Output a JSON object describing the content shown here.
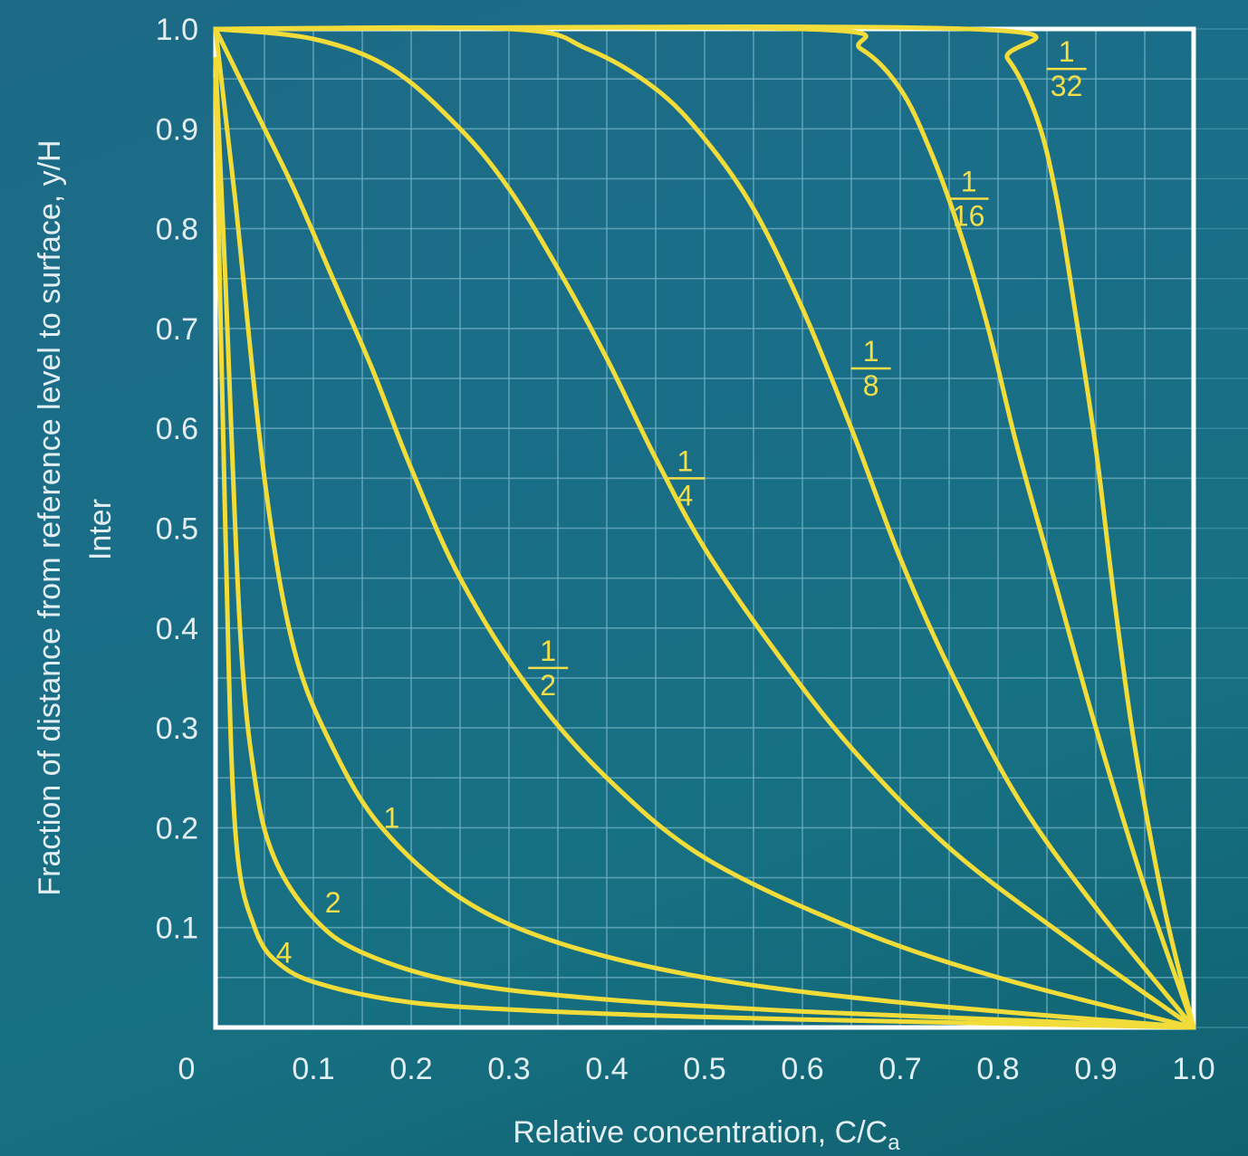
{
  "chart_data": {
    "type": "line",
    "title": "",
    "xlabel": "Relative concentration, C/C",
    "xlabel_subscript": "a",
    "ylabel": "Fraction of distance from reference level to surface, y/H",
    "ylabel_secondary": "Inter",
    "xlim": [
      0,
      1.0
    ],
    "ylim": [
      0,
      1.0
    ],
    "grid": true,
    "x_ticks": [
      "0",
      "0.1",
      "0.2",
      "0.3",
      "0.4",
      "0.5",
      "0.6",
      "0.7",
      "0.8",
      "0.9",
      "1.0"
    ],
    "y_ticks": [
      "0.1",
      "0.2",
      "0.3",
      "0.4",
      "0.5",
      "0.6",
      "0.7",
      "0.8",
      "0.9",
      "1.0"
    ],
    "series": [
      {
        "name": "4",
        "z": 4,
        "x": [
          0.0,
          0.01,
          0.02,
          0.04,
          0.07,
          0.12,
          0.2,
          0.3,
          0.45,
          0.6,
          0.8,
          1.0
        ],
        "y": [
          0.95,
          0.5,
          0.2,
          0.1,
          0.06,
          0.04,
          0.025,
          0.018,
          0.012,
          0.008,
          0.004,
          0.0
        ]
      },
      {
        "name": "2",
        "z": 2,
        "x": [
          0.0,
          0.01,
          0.025,
          0.04,
          0.06,
          0.1,
          0.15,
          0.25,
          0.4,
          0.6,
          0.8,
          1.0
        ],
        "y": [
          0.97,
          0.75,
          0.4,
          0.25,
          0.17,
          0.11,
          0.075,
          0.045,
          0.028,
          0.016,
          0.008,
          0.0
        ]
      },
      {
        "name": "1",
        "z": 1,
        "x": [
          0.0,
          0.02,
          0.05,
          0.08,
          0.12,
          0.17,
          0.25,
          0.35,
          0.5,
          0.7,
          1.0
        ],
        "y": [
          1.0,
          0.83,
          0.55,
          0.38,
          0.28,
          0.2,
          0.13,
          0.085,
          0.05,
          0.025,
          0.0
        ]
      },
      {
        "name": "1/2",
        "z": 0.5,
        "x": [
          0.0,
          0.04,
          0.08,
          0.12,
          0.16,
          0.2,
          0.25,
          0.32,
          0.4,
          0.5,
          0.65,
          0.8,
          1.0
        ],
        "y": [
          1.0,
          0.92,
          0.84,
          0.75,
          0.66,
          0.56,
          0.45,
          0.34,
          0.25,
          0.17,
          0.1,
          0.05,
          0.0
        ]
      },
      {
        "name": "1/4",
        "z": 0.25,
        "x": [
          0.0,
          0.1,
          0.18,
          0.25,
          0.3,
          0.35,
          0.4,
          0.45,
          0.5,
          0.57,
          0.65,
          0.75,
          0.87,
          1.0
        ],
        "y": [
          1.0,
          0.99,
          0.96,
          0.9,
          0.84,
          0.76,
          0.67,
          0.57,
          0.48,
          0.38,
          0.28,
          0.18,
          0.09,
          0.0
        ]
      },
      {
        "name": "1/8",
        "z": 0.125,
        "x": [
          0.0,
          0.3,
          0.38,
          0.45,
          0.5,
          0.55,
          0.6,
          0.65,
          0.7,
          0.75,
          0.82,
          0.9,
          1.0
        ],
        "y": [
          1.0,
          1.0,
          0.98,
          0.94,
          0.89,
          0.82,
          0.72,
          0.6,
          0.47,
          0.36,
          0.23,
          0.12,
          0.0
        ]
      },
      {
        "name": "1/16",
        "z": 0.0625,
        "x": [
          0.0,
          0.6,
          0.66,
          0.7,
          0.73,
          0.76,
          0.79,
          0.82,
          0.86,
          0.9,
          0.95,
          1.0
        ],
        "y": [
          1.0,
          1.0,
          0.98,
          0.94,
          0.88,
          0.8,
          0.7,
          0.58,
          0.44,
          0.3,
          0.14,
          0.0
        ]
      },
      {
        "name": "1/32",
        "z": 0.03125,
        "x": [
          0.0,
          0.77,
          0.81,
          0.84,
          0.86,
          0.88,
          0.9,
          0.92,
          0.94,
          0.97,
          1.0
        ],
        "y": [
          1.0,
          1.0,
          0.97,
          0.91,
          0.83,
          0.71,
          0.58,
          0.42,
          0.28,
          0.12,
          0.0
        ]
      }
    ],
    "curve_labels": [
      {
        "series": "4",
        "numerator": "4",
        "denominator": "",
        "at": [
          0.07,
          0.075
        ]
      },
      {
        "series": "2",
        "numerator": "2",
        "denominator": "",
        "at": [
          0.12,
          0.125
        ]
      },
      {
        "series": "1",
        "numerator": "1",
        "denominator": "",
        "at": [
          0.18,
          0.21
        ]
      },
      {
        "series": "1/2",
        "numerator": "1",
        "denominator": "2",
        "at": [
          0.34,
          0.36
        ]
      },
      {
        "series": "1/4",
        "numerator": "1",
        "denominator": "4",
        "at": [
          0.48,
          0.55
        ]
      },
      {
        "series": "1/8",
        "numerator": "1",
        "denominator": "8",
        "at": [
          0.67,
          0.66
        ]
      },
      {
        "series": "1/16",
        "numerator": "1",
        "denominator": "16",
        "at": [
          0.77,
          0.83
        ]
      },
      {
        "series": "1/32",
        "numerator": "1",
        "denominator": "32",
        "at": [
          0.87,
          0.96
        ]
      }
    ]
  },
  "colors": {
    "curve": "#f2dc3a",
    "curve_label": "#f3df4a",
    "frame": "#ffffff",
    "grid": "#6fb0c2",
    "text": "#e3eef2"
  }
}
